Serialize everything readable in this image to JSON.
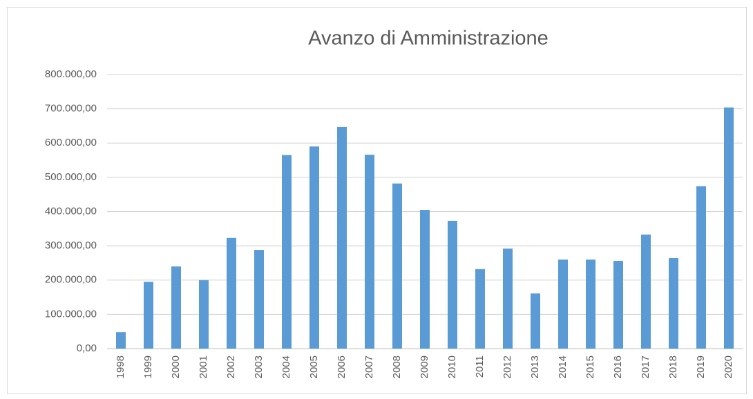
{
  "chart_data": {
    "type": "bar",
    "title": "Avanzo di Amministrazione",
    "categories": [
      "1998",
      "1999",
      "2000",
      "2001",
      "2002",
      "2003",
      "2004",
      "2005",
      "2006",
      "2007",
      "2008",
      "2009",
      "2010",
      "2011",
      "2012",
      "2013",
      "2014",
      "2015",
      "2016",
      "2017",
      "2018",
      "2019",
      "2020"
    ],
    "values": [
      48000,
      195000,
      240000,
      200000,
      323000,
      288000,
      565000,
      590000,
      647000,
      566000,
      482000,
      405000,
      373000,
      232000,
      292000,
      161000,
      260000,
      260000,
      256000,
      333000,
      264000,
      474000,
      704000
    ],
    "color": "#5b9bd5",
    "ylim": [
      0,
      800000
    ],
    "yticks": [
      {
        "value": 0,
        "label": "0,00"
      },
      {
        "value": 100000,
        "label": "100.000,00"
      },
      {
        "value": 200000,
        "label": "200.000,00"
      },
      {
        "value": 300000,
        "label": "300.000,00"
      },
      {
        "value": 400000,
        "label": "400.000,00"
      },
      {
        "value": 500000,
        "label": "500.000,00"
      },
      {
        "value": 600000,
        "label": "600.000,00"
      },
      {
        "value": 700000,
        "label": "700.000,00"
      },
      {
        "value": 800000,
        "label": "800.000,00"
      }
    ],
    "grid": true
  }
}
